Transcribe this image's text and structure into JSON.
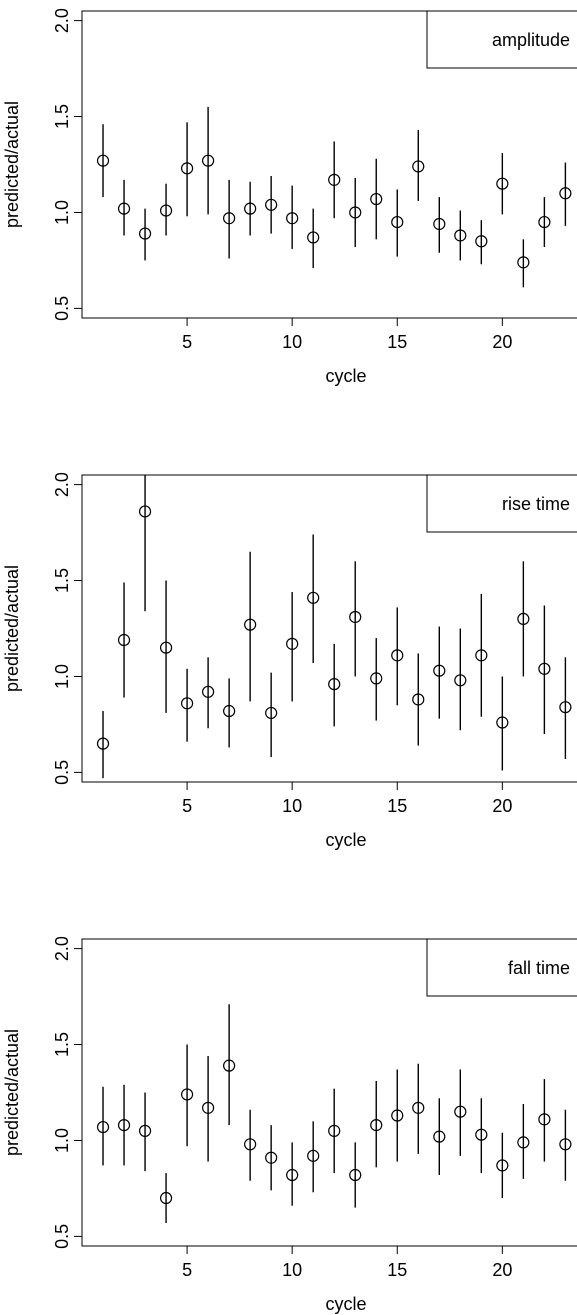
{
  "chart_data": [
    {
      "type": "scatter",
      "legend": "amplitude",
      "legend_position": "top-right",
      "xlabel": "cycle",
      "ylabel": "predicted/actual",
      "xlim": [
        0,
        23.6
      ],
      "ylim": [
        0.45,
        2.05
      ],
      "xticks": [
        5,
        10,
        15,
        20
      ],
      "yticks": [
        0.5,
        1.0,
        1.5,
        2.0
      ],
      "x": [
        1,
        2,
        3,
        4,
        5,
        6,
        7,
        8,
        9,
        10,
        11,
        12,
        13,
        14,
        15,
        16,
        17,
        18,
        19,
        20,
        21,
        22,
        23
      ],
      "y": [
        1.27,
        1.02,
        0.89,
        1.01,
        1.23,
        1.27,
        0.97,
        1.02,
        1.04,
        0.97,
        0.87,
        1.17,
        1.0,
        1.07,
        0.95,
        1.24,
        0.94,
        0.88,
        0.85,
        1.15,
        0.74,
        0.95,
        1.1
      ],
      "y_low": [
        1.08,
        0.88,
        0.75,
        0.88,
        0.98,
        0.99,
        0.76,
        0.88,
        0.89,
        0.81,
        0.71,
        0.97,
        0.82,
        0.86,
        0.77,
        1.06,
        0.79,
        0.75,
        0.73,
        0.99,
        0.61,
        0.82,
        0.93
      ],
      "y_high": [
        1.46,
        1.17,
        1.02,
        1.15,
        1.47,
        1.55,
        1.17,
        1.16,
        1.19,
        1.14,
        1.02,
        1.37,
        1.18,
        1.28,
        1.12,
        1.43,
        1.08,
        1.01,
        0.96,
        1.31,
        0.86,
        1.08,
        1.26
      ]
    },
    {
      "type": "scatter",
      "legend": "rise time",
      "legend_position": "top-right",
      "xlabel": "cycle",
      "ylabel": "predicted/actual",
      "xlim": [
        0,
        23.6
      ],
      "ylim": [
        0.45,
        2.05
      ],
      "xticks": [
        5,
        10,
        15,
        20
      ],
      "yticks": [
        0.5,
        1.0,
        1.5,
        2.0
      ],
      "x": [
        1,
        2,
        3,
        4,
        5,
        6,
        7,
        8,
        9,
        10,
        11,
        12,
        13,
        14,
        15,
        16,
        17,
        18,
        19,
        20,
        21,
        22,
        23
      ],
      "y": [
        0.65,
        1.19,
        1.86,
        1.15,
        0.86,
        0.92,
        0.82,
        1.27,
        0.81,
        1.17,
        1.41,
        0.96,
        1.31,
        0.99,
        1.11,
        0.88,
        1.03,
        0.98,
        1.11,
        0.76,
        1.3,
        1.04,
        0.84
      ],
      "y_low": [
        0.47,
        0.89,
        1.34,
        0.81,
        0.66,
        0.73,
        0.63,
        0.87,
        0.58,
        0.87,
        1.07,
        0.74,
        1.0,
        0.77,
        0.85,
        0.64,
        0.78,
        0.72,
        0.79,
        0.51,
        1.0,
        0.7,
        0.57
      ],
      "y_high": [
        0.82,
        1.49,
        2.05,
        1.5,
        1.04,
        1.1,
        0.99,
        1.65,
        1.02,
        1.44,
        1.74,
        1.17,
        1.6,
        1.2,
        1.36,
        1.12,
        1.26,
        1.25,
        1.43,
        1.0,
        1.6,
        1.37,
        1.1
      ]
    },
    {
      "type": "scatter",
      "legend": "fall time",
      "legend_position": "top-right",
      "xlabel": "cycle",
      "ylabel": "predicted/actual",
      "xlim": [
        0,
        23.6
      ],
      "ylim": [
        0.45,
        2.05
      ],
      "xticks": [
        5,
        10,
        15,
        20
      ],
      "yticks": [
        0.5,
        1.0,
        1.5,
        2.0
      ],
      "x": [
        1,
        2,
        3,
        4,
        5,
        6,
        7,
        8,
        9,
        10,
        11,
        12,
        13,
        14,
        15,
        16,
        17,
        18,
        19,
        20,
        21,
        22,
        23
      ],
      "y": [
        1.07,
        1.08,
        1.05,
        0.7,
        1.24,
        1.17,
        1.39,
        0.98,
        0.91,
        0.82,
        0.92,
        1.05,
        0.82,
        1.08,
        1.13,
        1.17,
        1.02,
        1.15,
        1.03,
        0.87,
        0.99,
        1.11,
        0.98
      ],
      "y_low": [
        0.87,
        0.87,
        0.84,
        0.57,
        0.97,
        0.89,
        1.08,
        0.79,
        0.74,
        0.66,
        0.73,
        0.83,
        0.65,
        0.86,
        0.89,
        0.93,
        0.82,
        0.92,
        0.83,
        0.7,
        0.8,
        0.89,
        0.79
      ],
      "y_high": [
        1.28,
        1.29,
        1.25,
        0.83,
        1.5,
        1.44,
        1.71,
        1.16,
        1.08,
        0.99,
        1.1,
        1.27,
        0.99,
        1.31,
        1.37,
        1.4,
        1.22,
        1.37,
        1.22,
        1.04,
        1.19,
        1.32,
        1.16
      ]
    }
  ]
}
